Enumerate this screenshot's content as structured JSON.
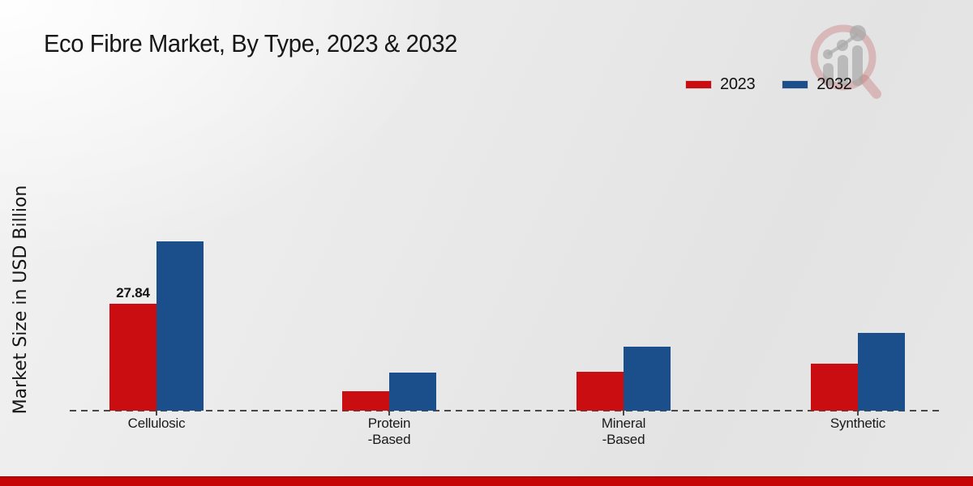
{
  "chart_data": {
    "type": "bar",
    "title": "Eco Fibre Market, By Type, 2023 & 2032",
    "ylabel": "Market Size in USD Billion",
    "xlabel": "",
    "categories": [
      "Cellulosic",
      "Protein-Based",
      "Mineral-Based",
      "Synthetic"
    ],
    "categories_display": [
      "Cellulosic",
      "Protein\n-Based",
      "Mineral\n-Based",
      "Synthetic"
    ],
    "series": [
      {
        "name": "2023",
        "color": "#c90d11",
        "values": [
          27.84,
          5.1,
          10.1,
          12.2
        ]
      },
      {
        "name": "2032",
        "color": "#1b4f8c",
        "values": [
          44.0,
          9.9,
          16.7,
          20.3
        ]
      }
    ],
    "data_labels": {
      "visible_on": "Cellulosic 2023 only",
      "labeled_value": "27.84"
    },
    "legend_position": "top-right",
    "grid": false,
    "axis_style": "dashed-baseline-with-ticks",
    "ylim_implied": [
      0,
      47
    ]
  },
  "branding": {
    "logo_name": "magnifier-growth-chart-logo",
    "footer_strip_color": "#c60606"
  }
}
